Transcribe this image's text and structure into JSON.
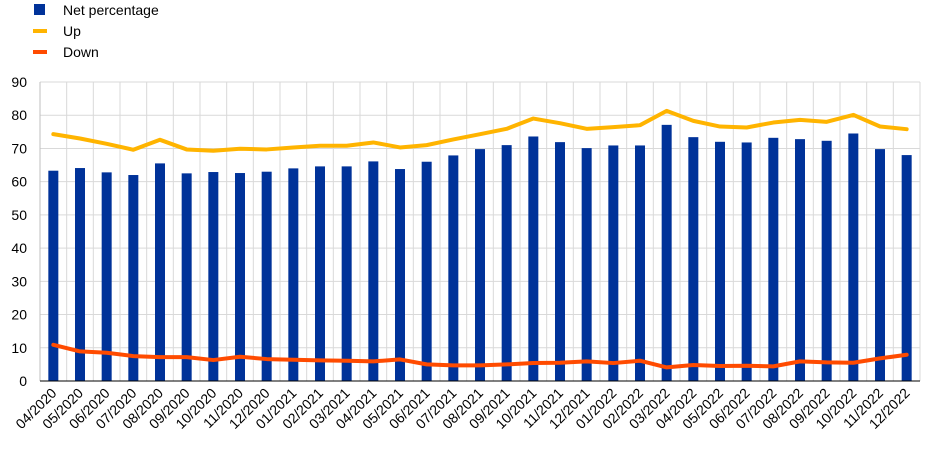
{
  "chart_data": {
    "type": "bar",
    "title": "",
    "xlabel": "",
    "ylabel": "",
    "ylim": [
      0,
      90
    ],
    "yticks": [
      0,
      10,
      20,
      30,
      40,
      50,
      60,
      70,
      80,
      90
    ],
    "grid": true,
    "legend_position": "top-left",
    "categories": [
      "04/2020",
      "05/2020",
      "06/2020",
      "07/2020",
      "08/2020",
      "09/2020",
      "10/2020",
      "11/2020",
      "12/2020",
      "01/2021",
      "02/2021",
      "03/2021",
      "04/2021",
      "05/2021",
      "06/2021",
      "07/2021",
      "08/2021",
      "09/2021",
      "10/2021",
      "11/2021",
      "12/2021",
      "01/2022",
      "02/2022",
      "03/2022",
      "04/2022",
      "05/2022",
      "06/2022",
      "07/2022",
      "08/2022",
      "09/2022",
      "10/2022",
      "11/2022",
      "12/2022"
    ],
    "series": [
      {
        "name": "Net percentage",
        "type": "bar",
        "color": "#003299",
        "values": [
          63.3,
          64.1,
          62.8,
          62.0,
          65.5,
          62.5,
          62.9,
          62.6,
          63.0,
          64.0,
          64.6,
          64.6,
          66.1,
          63.8,
          66.0,
          67.9,
          69.8,
          71.0,
          73.6,
          71.9,
          70.1,
          70.9,
          70.9,
          77.1,
          73.4,
          72.0,
          71.8,
          73.2,
          72.8,
          72.3,
          74.5,
          69.8,
          68.0
        ]
      },
      {
        "name": "Up",
        "type": "line",
        "color": "#FFB400",
        "values": [
          74.3,
          73.0,
          71.4,
          69.6,
          72.6,
          69.7,
          69.3,
          69.9,
          69.7,
          70.3,
          70.8,
          70.8,
          71.8,
          70.3,
          71.0,
          72.7,
          74.3,
          75.9,
          79.0,
          77.6,
          75.9,
          76.4,
          77.0,
          81.3,
          78.3,
          76.6,
          76.3,
          77.8,
          78.6,
          78.0,
          80.1,
          76.6,
          75.8
        ]
      },
      {
        "name": "Down",
        "type": "line",
        "color": "#FF4B00",
        "values": [
          10.9,
          8.9,
          8.5,
          7.5,
          7.2,
          7.2,
          6.3,
          7.3,
          6.6,
          6.4,
          6.2,
          6.1,
          5.9,
          6.5,
          5.0,
          4.7,
          4.7,
          5.0,
          5.4,
          5.5,
          5.9,
          5.4,
          6.1,
          4.1,
          4.8,
          4.5,
          4.6,
          4.4,
          5.9,
          5.6,
          5.5,
          6.8,
          7.9
        ]
      }
    ]
  }
}
